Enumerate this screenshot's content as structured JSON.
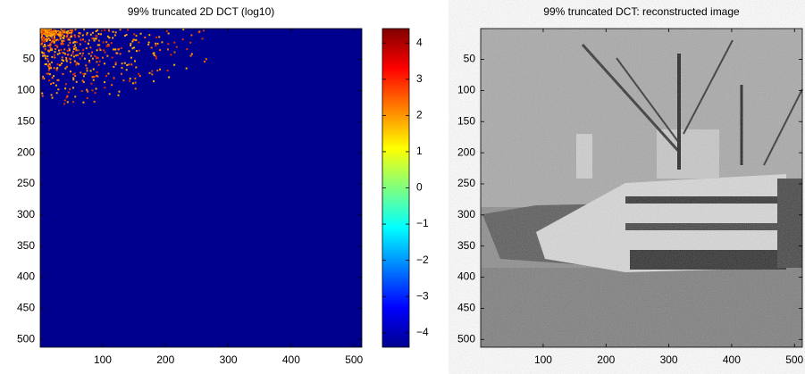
{
  "chart_data": [
    {
      "type": "image",
      "title": "99% truncated 2D DCT (log10)",
      "xlim": [
        0.5,
        512.5
      ],
      "ylim": [
        0.5,
        512.5
      ],
      "xticks": [
        100,
        200,
        300,
        400,
        500
      ],
      "yticks": [
        50,
        100,
        150,
        200,
        250,
        300,
        350,
        400,
        450,
        500
      ],
      "colorbar": {
        "colormap": "jet",
        "ylim": [
          -4.4,
          4.4
        ],
        "yticks": [
          {
            "value": -4,
            "label": "−4"
          },
          {
            "value": -3,
            "label": "−3"
          },
          {
            "value": -2,
            "label": "−2"
          },
          {
            "value": -1,
            "label": "−1"
          },
          0,
          1,
          2,
          3,
          4
        ]
      }
    },
    {
      "type": "image",
      "title": "99% truncated DCT: reconstructed image",
      "xlim": [
        0.5,
        512.5
      ],
      "ylim": [
        0.5,
        512.5
      ],
      "xticks": [
        100,
        200,
        300,
        400,
        500
      ],
      "yticks": [
        50,
        100,
        150,
        200,
        250,
        300,
        350,
        400,
        450,
        500
      ]
    }
  ]
}
